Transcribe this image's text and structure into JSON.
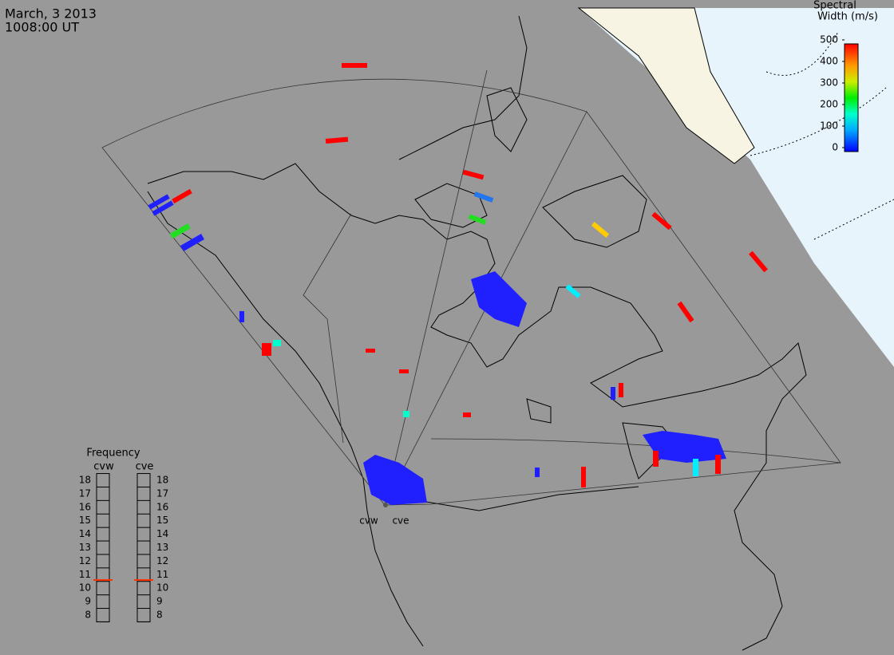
{
  "header": {
    "date": "March, 3 2013",
    "time": "1008:00 UT"
  },
  "colorbar": {
    "title": [
      "Spectral",
      "Width (m/s)"
    ],
    "ticks": [
      0,
      100,
      200,
      300,
      400,
      500
    ]
  },
  "frequency": {
    "title": "Frequency",
    "radars": [
      {
        "name": "cvw",
        "value": 10.6
      },
      {
        "name": "cve",
        "value": 10.6
      }
    ],
    "ticks": [
      18,
      17,
      16,
      15,
      14,
      13,
      12,
      11,
      10,
      9,
      8
    ]
  },
  "radar_labels": [
    "cvw",
    "cve"
  ]
}
